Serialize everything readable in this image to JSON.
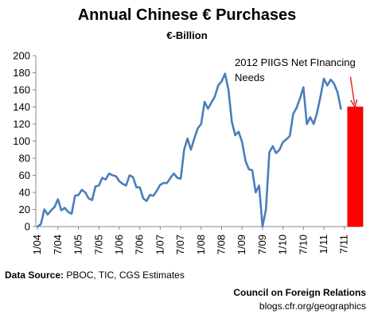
{
  "chart_data": {
    "type": "line",
    "title": "Annual Chinese € Purchases",
    "subtitle": "€-Billion",
    "ylim": [
      0,
      200
    ],
    "yticks": [
      0,
      20,
      40,
      60,
      80,
      100,
      120,
      140,
      160,
      180,
      200
    ],
    "xticks": [
      "1/04",
      "7/04",
      "1/05",
      "7/05",
      "1/06",
      "7/06",
      "1/07",
      "7/07",
      "1/08",
      "7/08",
      "1/09",
      "7/09",
      "1/10",
      "7/10",
      "1/11",
      "7/11"
    ],
    "grid": false,
    "series": [
      {
        "type": "line",
        "color": "#4a7ebb",
        "start": "1/04",
        "values": [
          0,
          3,
          20,
          14,
          19,
          23,
          32,
          19,
          22,
          17,
          15,
          36,
          37,
          43,
          40,
          33,
          31,
          47,
          48,
          57,
          55,
          62,
          60,
          59,
          53,
          50,
          48,
          60,
          58,
          46,
          46,
          33,
          30,
          37,
          36,
          42,
          49,
          51,
          51,
          57,
          62,
          57,
          56,
          90,
          103,
          90,
          103,
          115,
          120,
          146,
          138,
          145,
          152,
          165,
          170,
          179,
          160,
          123,
          107,
          111,
          99,
          77,
          67,
          66,
          40,
          48,
          0,
          20,
          87,
          94,
          86,
          90,
          99,
          102,
          106,
          132,
          139,
          150,
          163,
          120,
          128,
          120,
          133,
          152,
          173,
          165,
          172,
          167,
          157,
          138
        ]
      },
      {
        "type": "bar",
        "name": "2012 PIIGS Net FInancing Needs",
        "color": "#ff0000",
        "value": 140
      }
    ],
    "annotations": [
      {
        "text_lines": [
          "2012 PIIGS Net FInancing",
          "Needs"
        ]
      }
    ]
  },
  "footer": {
    "source_label": "Data Source:",
    "source_text": " PBOC, TIC, CGS Estimates",
    "org": "Council on Foreign Relations",
    "url": "blogs.cfr.org/geographics"
  }
}
